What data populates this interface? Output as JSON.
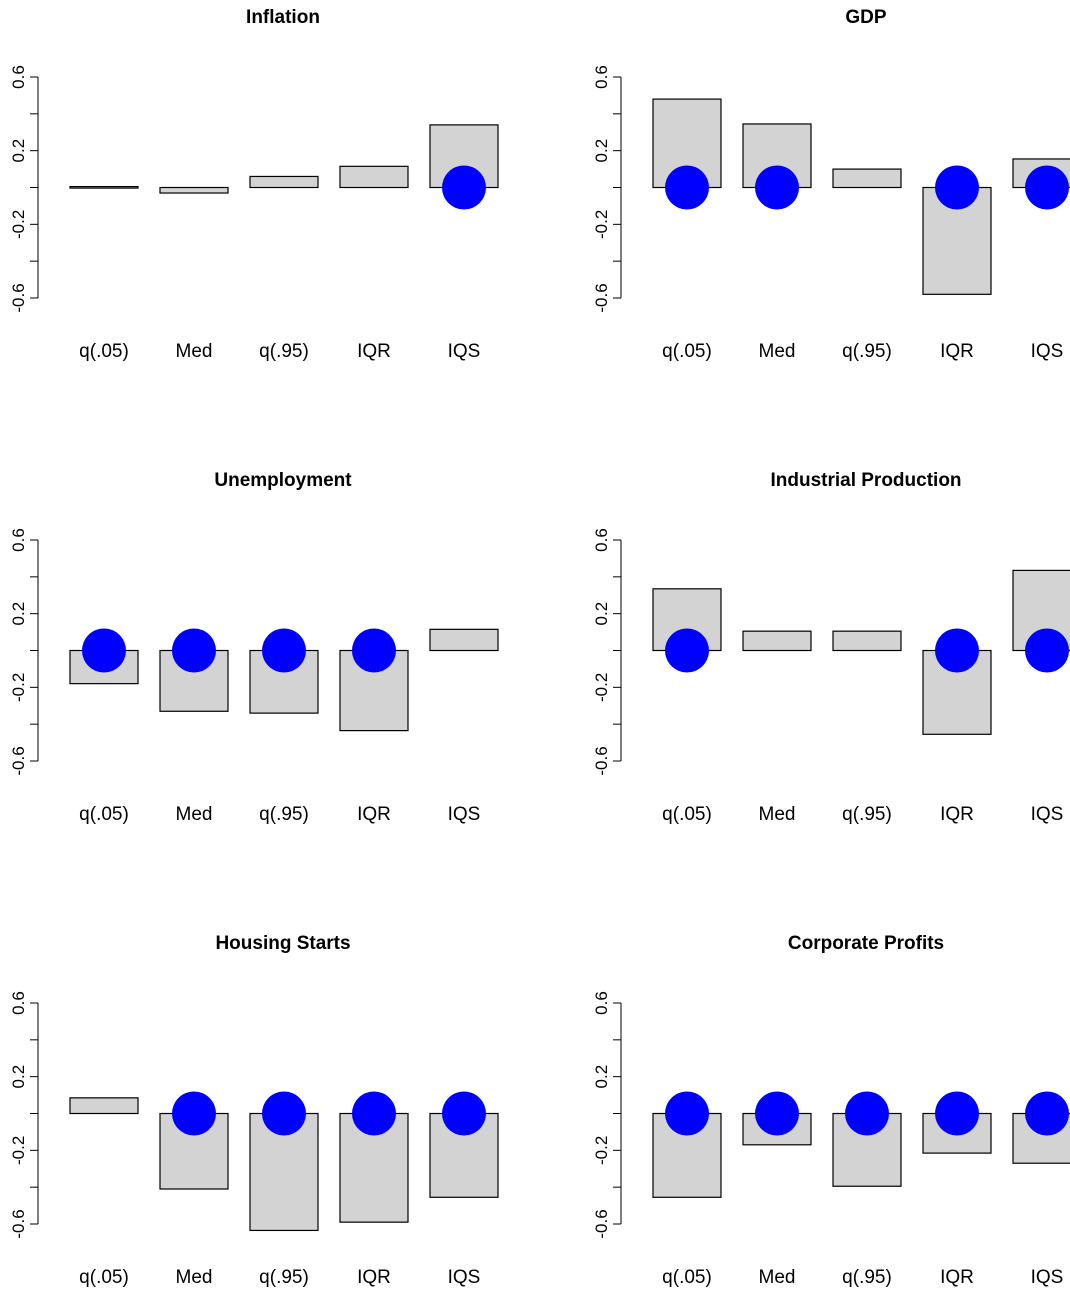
{
  "colors": {
    "bar_fill": "#d3d3d3",
    "bar_stroke": "#000000",
    "marker": "#0000ff",
    "background": "#ffffff"
  },
  "chart_data": [
    {
      "type": "bar",
      "title": "Inflation",
      "categories": [
        "q(.05)",
        "Med",
        "q(.95)",
        "IQR",
        "IQS"
      ],
      "values": [
        0.005,
        -0.03,
        0.06,
        0.115,
        0.34
      ],
      "markers": [
        false,
        false,
        false,
        false,
        true
      ],
      "yticks": [
        "0.6",
        "0.2",
        "-0.2",
        "-0.6"
      ],
      "ylim": [
        -0.6,
        0.6
      ],
      "axes": "y-only"
    },
    {
      "type": "bar",
      "title": "GDP",
      "categories": [
        "q(.05)",
        "Med",
        "q(.95)",
        "IQR",
        "IQS"
      ],
      "values": [
        0.48,
        0.345,
        0.1,
        -0.58,
        0.155
      ],
      "markers": [
        true,
        true,
        false,
        true,
        true
      ],
      "yticks": [
        "0.6",
        "0.2",
        "-0.2",
        "-0.6"
      ],
      "ylim": [
        -0.6,
        0.6
      ],
      "axes": "y-only"
    },
    {
      "type": "bar",
      "title": "Unemployment",
      "categories": [
        "q(.05)",
        "Med",
        "q(.95)",
        "IQR",
        "IQS"
      ],
      "values": [
        -0.18,
        -0.33,
        -0.34,
        -0.435,
        0.115
      ],
      "markers": [
        true,
        true,
        true,
        true,
        false
      ],
      "yticks": [
        "0.6",
        "0.2",
        "-0.2",
        "-0.6"
      ],
      "ylim": [
        -0.6,
        0.6
      ],
      "axes": "y-only"
    },
    {
      "type": "bar",
      "title": "Industrial Production",
      "categories": [
        "q(.05)",
        "Med",
        "q(.95)",
        "IQR",
        "IQS"
      ],
      "values": [
        0.335,
        0.105,
        0.105,
        -0.455,
        0.435
      ],
      "markers": [
        true,
        false,
        false,
        true,
        true
      ],
      "yticks": [
        "0.6",
        "0.2",
        "-0.2",
        "-0.6"
      ],
      "ylim": [
        -0.6,
        0.6
      ],
      "axes": "y-only"
    },
    {
      "type": "bar",
      "title": "Housing Starts",
      "categories": [
        "q(.05)",
        "Med",
        "q(.95)",
        "IQR",
        "IQS"
      ],
      "values": [
        0.085,
        -0.41,
        -0.635,
        -0.59,
        -0.455
      ],
      "markers": [
        false,
        true,
        true,
        true,
        true
      ],
      "yticks": [
        "0.6",
        "0.2",
        "-0.2",
        "-0.6"
      ],
      "ylim": [
        -0.6,
        0.6
      ],
      "axes": "y-only"
    },
    {
      "type": "bar",
      "title": "Corporate Profits",
      "categories": [
        "q(.05)",
        "Med",
        "q(.95)",
        "IQR",
        "IQS"
      ],
      "values": [
        -0.455,
        -0.17,
        -0.395,
        -0.215,
        -0.27
      ],
      "markers": [
        true,
        true,
        true,
        true,
        true
      ],
      "yticks": [
        "0.6",
        "0.2",
        "-0.2",
        "-0.6"
      ],
      "ylim": [
        -0.6,
        0.6
      ],
      "axes": "y-only"
    }
  ]
}
